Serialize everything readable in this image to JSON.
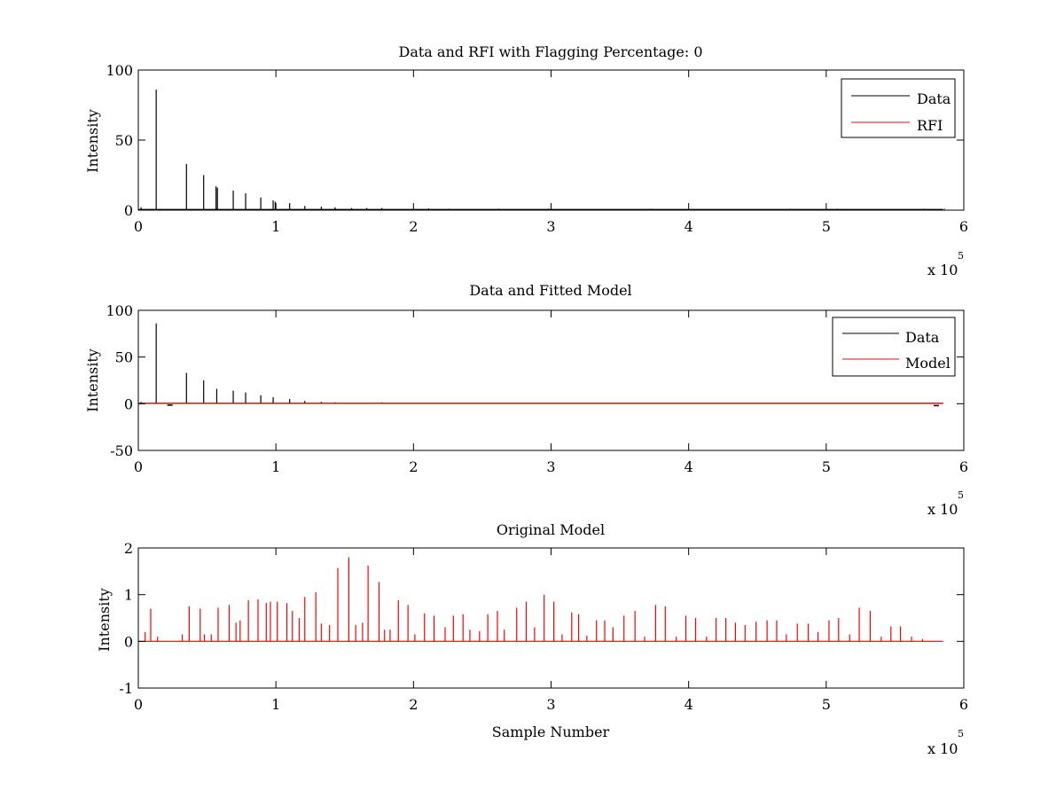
{
  "figure": {
    "background": "#ffffff",
    "x_multiplier": "x 10",
    "x_multiplier_exponent": "5"
  },
  "chart_data": [
    {
      "type": "line",
      "title": "Data and RFI with Flagging Percentage: 0",
      "xlabel": "",
      "ylabel": "Intensity",
      "xlim": [
        0,
        600000
      ],
      "ylim": [
        0,
        100
      ],
      "xticks": [
        0,
        1,
        2,
        3,
        4,
        5,
        6
      ],
      "yticks": [
        0,
        50,
        100
      ],
      "legend": {
        "placement": "top-right",
        "entries": [
          "Data",
          "RFI"
        ]
      },
      "series": [
        {
          "name": "Data",
          "color": "#000000",
          "style": "spikes",
          "baseline": 0.5,
          "x": [
            2000,
            13000,
            35000,
            47500,
            56500,
            57500,
            69000,
            78000,
            89000,
            98000,
            99500,
            110000,
            121000,
            133000,
            143000,
            155000,
            166000,
            177000,
            211000,
            226000,
            262000,
            298000,
            373000,
            474000,
            508000,
            571000,
            586000
          ],
          "y": [
            2,
            86,
            33,
            25,
            17,
            16,
            14,
            12,
            9,
            7,
            6,
            5,
            3,
            2.5,
            2,
            1.5,
            1.5,
            1.5,
            1.2,
            1,
            1,
            1,
            1,
            1,
            1,
            1,
            1
          ]
        },
        {
          "name": "RFI",
          "color": "#ff0000",
          "style": "spikes",
          "baseline": 0,
          "x": [],
          "y": []
        }
      ]
    },
    {
      "type": "line",
      "title": "Data and Fitted Model",
      "xlabel": "",
      "ylabel": "Intensity",
      "xlim": [
        0,
        600000
      ],
      "ylim": [
        -50,
        100
      ],
      "xticks": [
        0,
        1,
        2,
        3,
        4,
        5,
        6
      ],
      "yticks": [
        -50,
        0,
        50,
        100
      ],
      "legend": {
        "placement": "top-right",
        "entries": [
          "Data",
          "Model"
        ]
      },
      "series": [
        {
          "name": "Data",
          "color": "#000000",
          "style": "spikes",
          "baseline": 0.5,
          "x": [
            2000,
            13000,
            35000,
            47500,
            57000,
            69000,
            78000,
            89000,
            98000,
            110000,
            121000,
            133000,
            143000,
            177000,
            575000
          ],
          "y": [
            2,
            86,
            33,
            25,
            16,
            14,
            12,
            9,
            7,
            5,
            3,
            2,
            1.5,
            1.5,
            1
          ],
          "dips_x": [
            23000,
            580000
          ],
          "dips_y": [
            -1.5,
            -2
          ]
        },
        {
          "name": "Model",
          "color": "#ff0000",
          "style": "flat",
          "x": [
            0,
            585000
          ],
          "y": [
            0.3,
            0.3
          ]
        }
      ]
    },
    {
      "type": "line",
      "title": "Original Model",
      "xlabel": "Sample Number",
      "ylabel": "Intensity",
      "xlim": [
        0,
        600000
      ],
      "ylim": [
        -1,
        2
      ],
      "xticks": [
        0,
        1,
        2,
        3,
        4,
        5,
        6
      ],
      "yticks": [
        -1,
        0,
        1,
        2
      ],
      "legend": null,
      "series": [
        {
          "name": "",
          "color": "#ff0000",
          "style": "spikes",
          "baseline": 0,
          "x": [
            5000,
            9000,
            14000,
            32000,
            37000,
            45000,
            48000,
            53000,
            58000,
            66000,
            71000,
            74000,
            80000,
            87000,
            93000,
            96000,
            101000,
            108000,
            112000,
            117000,
            121000,
            129000,
            133000,
            139000,
            145000,
            153000,
            158000,
            163000,
            167000,
            175000,
            179000,
            183000,
            189000,
            196000,
            201000,
            208000,
            215000,
            223000,
            229000,
            236000,
            241000,
            248000,
            254000,
            261000,
            266000,
            275000,
            282000,
            288000,
            295000,
            302000,
            308000,
            315000,
            320000,
            326000,
            333000,
            339000,
            345000,
            353000,
            361000,
            368000,
            376000,
            383000,
            391000,
            398000,
            405000,
            413000,
            420000,
            427000,
            434000,
            441000,
            449000,
            457000,
            464000,
            471000,
            479000,
            487000,
            494000,
            502000,
            509000,
            517000,
            524000,
            532000,
            540000,
            547000,
            554000,
            562000,
            570000
          ],
          "y": [
            0.2,
            0.7,
            0.1,
            0.15,
            0.75,
            0.7,
            0.15,
            0.15,
            0.72,
            0.78,
            0.4,
            0.45,
            0.88,
            0.9,
            0.82,
            0.85,
            0.85,
            0.82,
            0.65,
            0.5,
            0.95,
            1.05,
            0.38,
            0.35,
            1.57,
            1.8,
            0.35,
            0.4,
            1.62,
            1.27,
            0.25,
            0.25,
            0.88,
            0.78,
            0.15,
            0.6,
            0.55,
            0.3,
            0.55,
            0.58,
            0.25,
            0.22,
            0.58,
            0.65,
            0.25,
            0.72,
            0.85,
            0.3,
            1.0,
            0.85,
            0.15,
            0.62,
            0.58,
            0.12,
            0.45,
            0.45,
            0.3,
            0.55,
            0.65,
            0.1,
            0.78,
            0.75,
            0.1,
            0.55,
            0.5,
            0.1,
            0.5,
            0.5,
            0.4,
            0.35,
            0.42,
            0.45,
            0.45,
            0.15,
            0.38,
            0.38,
            0.2,
            0.45,
            0.5,
            0.15,
            0.72,
            0.65,
            0.1,
            0.32,
            0.32,
            0.1,
            0.05
          ]
        }
      ]
    }
  ]
}
